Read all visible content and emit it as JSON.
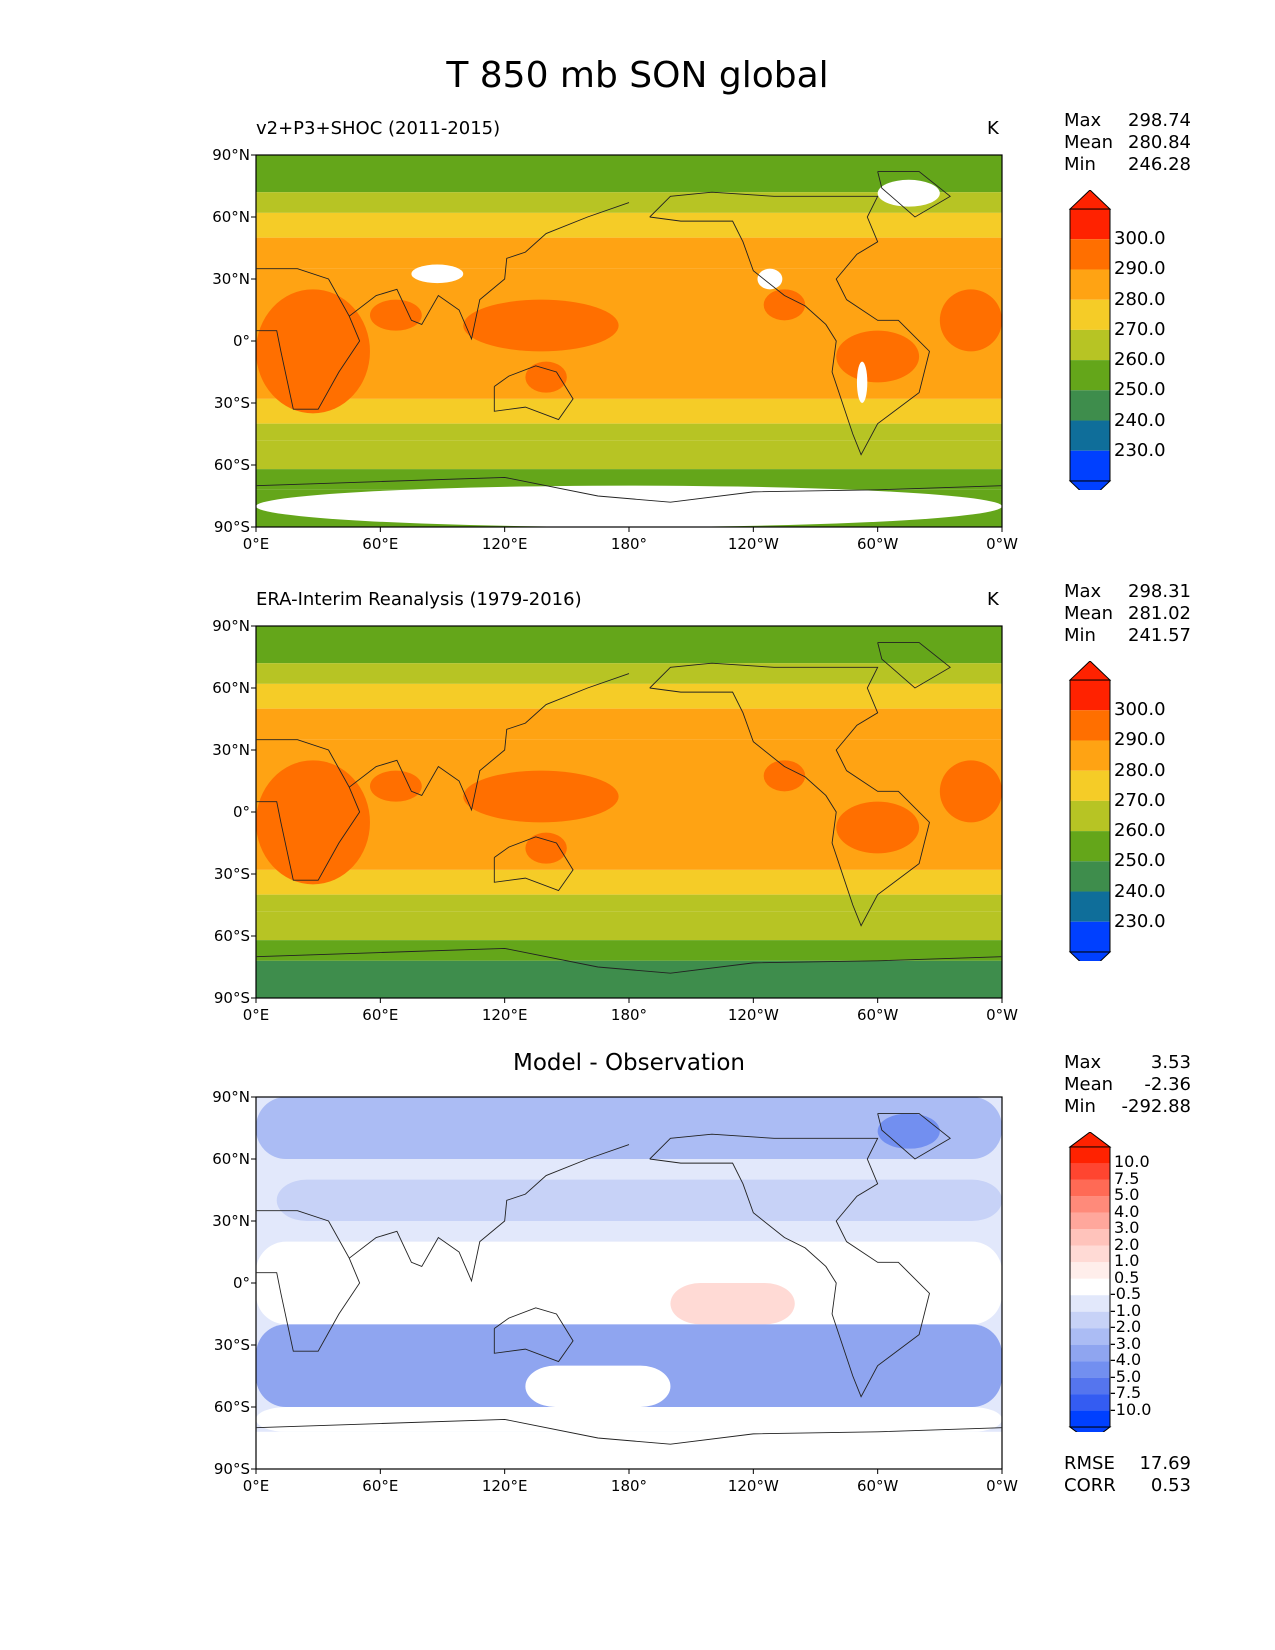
{
  "figure": {
    "title": "T 850 mb SON global"
  },
  "axes": {
    "lat_ticks": [
      "90°N",
      "60°N",
      "30°N",
      "0°",
      "30°S",
      "60°S",
      "90°S"
    ],
    "lon_ticks": [
      "0°E",
      "60°E",
      "120°E",
      "180°",
      "120°W",
      "60°W",
      "0°W"
    ]
  },
  "chart_data": [
    {
      "type": "heatmap",
      "title": "v2+P3+SHOC (2011-2015)",
      "units": "K",
      "stats": {
        "max_label": "Max",
        "max": "298.74",
        "mean_label": "Mean",
        "mean": "280.84",
        "min_label": "Min",
        "min": "246.28"
      },
      "colorbar_labels": [
        "300.0",
        "290.0",
        "280.0",
        "270.0",
        "260.0",
        "250.0",
        "240.0",
        "230.0"
      ],
      "lat_range": [
        -90,
        90
      ],
      "lon_range": [
        0,
        360
      ]
    },
    {
      "type": "heatmap",
      "title": "ERA-Interim Reanalysis (1979-2016)",
      "units": "K",
      "stats": {
        "max_label": "Max",
        "max": "298.31",
        "mean_label": "Mean",
        "mean": "281.02",
        "min_label": "Min",
        "min": "241.57"
      },
      "colorbar_labels": [
        "300.0",
        "290.0",
        "280.0",
        "270.0",
        "260.0",
        "250.0",
        "240.0",
        "230.0"
      ],
      "lat_range": [
        -90,
        90
      ],
      "lon_range": [
        0,
        360
      ]
    },
    {
      "type": "heatmap",
      "title": "Model - Observation",
      "units": "",
      "stats": {
        "max_label": "Max",
        "max": "3.53",
        "mean_label": "Mean",
        "mean": "-2.36",
        "min_label": "Min",
        "min": "-292.88"
      },
      "colorbar_labels": [
        "10.0",
        "7.5",
        "5.0",
        "4.0",
        "3.0",
        "2.0",
        "1.0",
        "0.5",
        "-0.5",
        "-1.0",
        "-2.0",
        "-3.0",
        "-4.0",
        "-5.0",
        "-7.5",
        "-10.0"
      ],
      "error_stats": {
        "rmse_label": "RMSE",
        "rmse": "17.69",
        "corr_label": "CORR",
        "corr": "0.53"
      },
      "lat_range": [
        -90,
        90
      ],
      "lon_range": [
        0,
        360
      ]
    }
  ],
  "colors": {
    "abs": [
      "#ff2200",
      "#ff6f00",
      "#ffa313",
      "#f5cc27",
      "#b7c424",
      "#64a61a",
      "#3e8d4c",
      "#0f6e9a",
      "#0040ff"
    ],
    "diff": [
      "#ff2200",
      "#ff4530",
      "#ff6a55",
      "#ff8a7a",
      "#ffa79c",
      "#ffc3bb",
      "#ffdad5",
      "#ffeeeb",
      "#ffffff",
      "#e2e8fb",
      "#c7d2f7",
      "#abbcf4",
      "#8fa5f0",
      "#728ff0",
      "#5575ee",
      "#345cf2",
      "#0040ff"
    ]
  }
}
